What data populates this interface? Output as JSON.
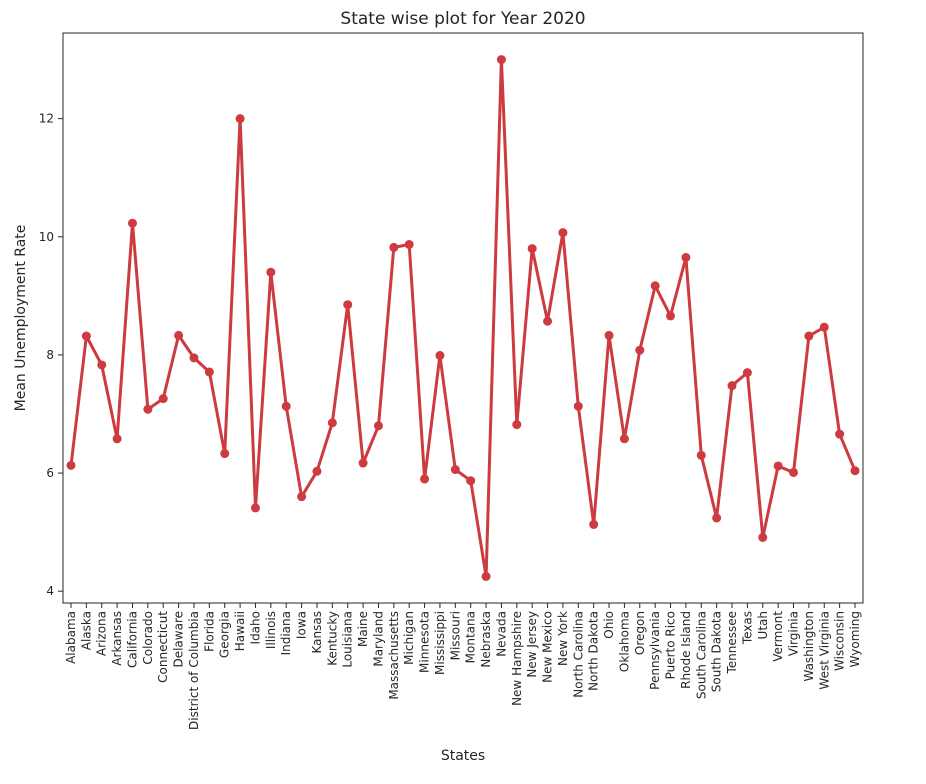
{
  "chart_data": {
    "type": "line",
    "title": "State wise plot for Year 2020",
    "xlabel": "States",
    "ylabel": "Mean Unemployment Rate",
    "ylim": [
      3.8,
      13.45
    ],
    "yticks": [
      4,
      6,
      8,
      10,
      12
    ],
    "grid": false,
    "legend": "none",
    "color": "#cd3a3f",
    "categories": [
      "Alabama",
      "Alaska",
      "Arizona",
      "Arkansas",
      "California",
      "Colorado",
      "Connecticut",
      "Delaware",
      "District of Columbia",
      "Florida",
      "Georgia",
      "Hawaii",
      "Idaho",
      "Illinois",
      "Indiana",
      "Iowa",
      "Kansas",
      "Kentucky",
      "Louisiana",
      "Maine",
      "Maryland",
      "Massachusetts",
      "Michigan",
      "Minnesota",
      "Mississippi",
      "Missouri",
      "Montana",
      "Nebraska",
      "Nevada",
      "New Hampshire",
      "New Jersey",
      "New Mexico",
      "New York",
      "North Carolina",
      "North Dakota",
      "Ohio",
      "Oklahoma",
      "Oregon",
      "Pennsylvania",
      "Puerto Rico",
      "Rhode Island",
      "South Carolina",
      "South Dakota",
      "Tennessee",
      "Texas",
      "Utah",
      "Vermont",
      "Virginia",
      "Washington",
      "West Virginia",
      "Wisconsin",
      "Wyoming"
    ],
    "values": [
      6.13,
      8.32,
      7.83,
      6.58,
      10.23,
      7.08,
      7.26,
      8.33,
      7.95,
      7.71,
      6.33,
      12.0,
      5.41,
      9.4,
      7.13,
      5.6,
      6.03,
      6.85,
      8.85,
      6.17,
      6.8,
      9.82,
      9.87,
      5.9,
      7.99,
      6.06,
      5.87,
      4.25,
      13.0,
      6.82,
      9.8,
      8.57,
      10.07,
      7.13,
      5.13,
      8.33,
      6.58,
      8.08,
      9.17,
      8.66,
      9.65,
      6.3,
      5.24,
      7.48,
      7.7,
      4.91,
      6.12,
      6.01,
      8.32,
      8.47,
      6.66,
      6.04
    ]
  }
}
